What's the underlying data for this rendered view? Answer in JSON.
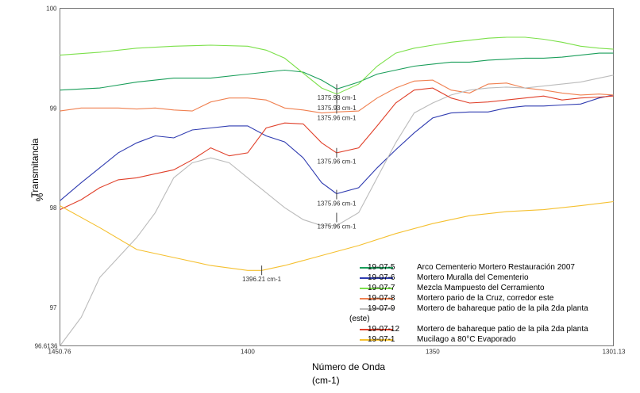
{
  "chart_data": {
    "type": "line",
    "xlabel": "Número de Onda",
    "xunit": "(cm-1)",
    "ylabel": "Transmitancia",
    "yunit": "%",
    "xlim": [
      1450.76,
      1301.13
    ],
    "ylim": [
      96.6136,
      100
    ],
    "x_ticks": [
      "1450.76",
      "1400",
      "1350",
      "1301.13"
    ],
    "y_ticks": [
      "100",
      "99",
      "98",
      "97",
      "96.6136"
    ],
    "series": [
      {
        "code": "19-07-5",
        "name": "Arco Cementerio Mortero Restauración 2007",
        "color": "#1a9e5a",
        "x": [
          1450.76,
          1440,
          1430,
          1420,
          1410,
          1400,
          1395,
          1390,
          1385,
          1380,
          1375.93,
          1370,
          1365,
          1360,
          1355,
          1350,
          1345,
          1340,
          1335,
          1330,
          1325,
          1320,
          1315,
          1310,
          1305,
          1301.13
        ],
        "y": [
          99.18,
          99.2,
          99.26,
          99.3,
          99.3,
          99.34,
          99.36,
          99.38,
          99.36,
          99.28,
          99.19,
          99.26,
          99.34,
          99.38,
          99.42,
          99.44,
          99.46,
          99.46,
          99.48,
          99.49,
          99.5,
          99.5,
          99.51,
          99.53,
          99.55,
          99.55
        ]
      },
      {
        "code": "19-07-6",
        "name": "Mortero Muralla del Cementerio",
        "color": "#2f3bb0",
        "x": [
          1450.76,
          1445,
          1440,
          1435,
          1430,
          1425,
          1420,
          1415,
          1410,
          1405,
          1400,
          1395,
          1390,
          1385,
          1380,
          1375.96,
          1370,
          1365,
          1360,
          1355,
          1350,
          1345,
          1340,
          1335,
          1330,
          1325,
          1320,
          1315,
          1310,
          1305,
          1301.13
        ],
        "y": [
          98.07,
          98.25,
          98.4,
          98.55,
          98.65,
          98.72,
          98.7,
          98.78,
          98.8,
          98.82,
          98.82,
          98.72,
          98.66,
          98.5,
          98.25,
          98.14,
          98.2,
          98.4,
          98.58,
          98.75,
          98.9,
          98.95,
          98.96,
          98.96,
          99.0,
          99.02,
          99.02,
          99.03,
          99.04,
          99.1,
          99.13
        ]
      },
      {
        "code": "19-07-7",
        "name": "Mezcla Mampuesto del Cerramiento",
        "color": "#7ce04a",
        "x": [
          1450.76,
          1440,
          1430,
          1420,
          1410,
          1400,
          1395,
          1390,
          1385,
          1380,
          1375.93,
          1370,
          1365,
          1360,
          1355,
          1350,
          1345,
          1340,
          1335,
          1330,
          1325,
          1320,
          1315,
          1310,
          1305,
          1301.13
        ],
        "y": [
          99.53,
          99.56,
          99.6,
          99.62,
          99.63,
          99.62,
          99.58,
          99.5,
          99.35,
          99.2,
          99.14,
          99.24,
          99.42,
          99.55,
          99.6,
          99.63,
          99.66,
          99.68,
          99.7,
          99.71,
          99.71,
          99.69,
          99.66,
          99.62,
          99.6,
          99.59
        ]
      },
      {
        "code": "19-07-8",
        "name": "Mortero pario de la Cruz, corredor este",
        "color": "#f08050",
        "x": [
          1450.76,
          1445,
          1440,
          1435,
          1430,
          1425,
          1420,
          1415,
          1410,
          1405,
          1400,
          1395,
          1390,
          1385,
          1380,
          1375.96,
          1370,
          1365,
          1360,
          1355,
          1350,
          1345,
          1340,
          1335,
          1330,
          1325,
          1320,
          1315,
          1310,
          1305,
          1301.13
        ],
        "y": [
          98.97,
          99.0,
          99.0,
          99.0,
          98.99,
          99.0,
          98.98,
          98.97,
          99.06,
          99.1,
          99.1,
          99.08,
          99.0,
          98.98,
          98.95,
          98.96,
          98.97,
          99.1,
          99.2,
          99.27,
          99.28,
          99.18,
          99.15,
          99.24,
          99.25,
          99.2,
          99.18,
          99.15,
          99.13,
          99.14,
          99.13
        ]
      },
      {
        "code": "19-07-9",
        "name": "Mortero de bahareque patio de la pila 2da planta",
        "name_cont": "(este)",
        "color": "#bbbbbb",
        "x": [
          1450.76,
          1445,
          1440,
          1435,
          1430,
          1425,
          1420,
          1415,
          1410,
          1405,
          1400,
          1395,
          1390,
          1385,
          1380,
          1375.96,
          1370,
          1365,
          1360,
          1355,
          1350,
          1345,
          1340,
          1335,
          1330,
          1325,
          1320,
          1315,
          1310,
          1305,
          1301.13
        ],
        "y": [
          96.6,
          96.9,
          97.3,
          97.5,
          97.7,
          97.95,
          98.3,
          98.45,
          98.5,
          98.45,
          98.3,
          98.15,
          98.0,
          97.88,
          97.82,
          97.82,
          97.95,
          98.3,
          98.65,
          98.95,
          99.05,
          99.13,
          99.18,
          99.2,
          99.21,
          99.2,
          99.22,
          99.24,
          99.26,
          99.3,
          99.33
        ]
      },
      {
        "code": "19-07-12",
        "name": "Mortero de bahareque patio de la pila 2da planta",
        "color": "#e0402a",
        "x": [
          1450.76,
          1445,
          1440,
          1435,
          1430,
          1425,
          1420,
          1415,
          1410,
          1405,
          1400,
          1395,
          1390,
          1385,
          1380,
          1375.96,
          1370,
          1365,
          1360,
          1355,
          1350,
          1345,
          1340,
          1335,
          1330,
          1325,
          1320,
          1315,
          1310,
          1305,
          1301.13
        ],
        "y": [
          97.98,
          98.08,
          98.2,
          98.28,
          98.3,
          98.34,
          98.38,
          98.48,
          98.6,
          98.52,
          98.55,
          98.8,
          98.85,
          98.84,
          98.65,
          98.55,
          98.6,
          98.82,
          99.05,
          99.18,
          99.2,
          99.1,
          99.05,
          99.06,
          99.08,
          99.1,
          99.12,
          99.08,
          99.1,
          99.11,
          99.12
        ]
      },
      {
        "code": "19-07-1",
        "name": "Mucilago  a 80°C  Evaporado",
        "color": "#f5c030",
        "x": [
          1450.76,
          1440,
          1430,
          1420,
          1410,
          1400,
          1396.21,
          1390,
          1380,
          1370,
          1360,
          1350,
          1340,
          1330,
          1320,
          1310,
          1301.13
        ],
        "y": [
          98.02,
          97.8,
          97.58,
          97.5,
          97.42,
          97.37,
          97.37,
          97.42,
          97.52,
          97.62,
          97.74,
          97.84,
          97.92,
          97.96,
          97.98,
          98.02,
          98.06
        ]
      }
    ],
    "annotations": [
      {
        "text": "1375.93 cm-1",
        "x": 1375.93,
        "y": 99.08
      },
      {
        "text": "1375.93 cm-1",
        "x": 1375.93,
        "y": 98.98
      },
      {
        "text": "1375.96 cm-1",
        "x": 1375.96,
        "y": 98.88
      },
      {
        "text": "1375.96 cm-1",
        "x": 1375.96,
        "y": 98.44
      },
      {
        "text": "1375.96 cm-1",
        "x": 1375.96,
        "y": 98.02
      },
      {
        "text": "1375.96 cm-1",
        "x": 1375.96,
        "y": 97.79
      },
      {
        "text": "1396.21 cm-1",
        "x": 1396.21,
        "y": 97.26
      }
    ],
    "grid": false,
    "legend": "bottom-right"
  }
}
